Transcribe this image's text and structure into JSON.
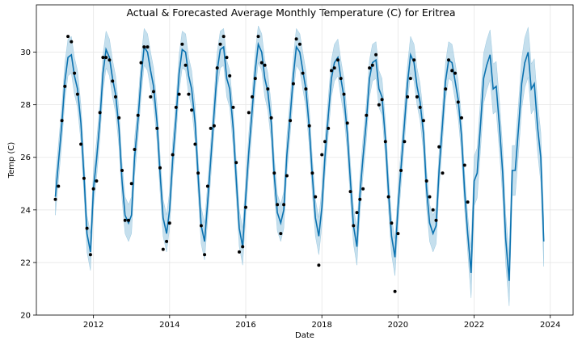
{
  "chart_data": {
    "type": "line",
    "title": "Actual & Forecasted Average Monthly Temperature (C) for Eritrea",
    "xlabel": "Date",
    "ylabel": "Temp (C)",
    "xlim": [
      2010.5,
      2024.6
    ],
    "ylim": [
      20,
      31.8
    ],
    "x_ticks": [
      2012,
      2014,
      2016,
      2018,
      2020,
      2022,
      2024
    ],
    "x_tick_labels": [
      "2012",
      "2014",
      "2016",
      "2018",
      "2020",
      "2022",
      "2024"
    ],
    "y_ticks": [
      20,
      22,
      24,
      26,
      28,
      30
    ],
    "y_tick_labels": [
      "20",
      "22",
      "24",
      "26",
      "28",
      "30"
    ],
    "grid": true,
    "colors": {
      "forecast": "#0b72b0",
      "band": "#9ecae1",
      "actual": "#000000"
    },
    "series": [
      {
        "role": "actual",
        "marker": "point",
        "points": [
          [
            2011.0,
            24.4
          ],
          [
            2011.08,
            24.9
          ],
          [
            2011.17,
            27.4
          ],
          [
            2011.25,
            28.7
          ],
          [
            2011.33,
            30.6
          ],
          [
            2011.42,
            30.4
          ],
          [
            2011.5,
            29.2
          ],
          [
            2011.58,
            28.4
          ],
          [
            2011.67,
            26.5
          ],
          [
            2011.75,
            25.2
          ],
          [
            2011.83,
            23.3
          ],
          [
            2011.92,
            22.3
          ],
          [
            2012.0,
            24.8
          ],
          [
            2012.08,
            25.1
          ],
          [
            2012.17,
            27.7
          ],
          [
            2012.25,
            29.8
          ],
          [
            2012.33,
            29.8
          ],
          [
            2012.42,
            29.7
          ],
          [
            2012.5,
            28.9
          ],
          [
            2012.58,
            28.3
          ],
          [
            2012.67,
            27.5
          ],
          [
            2012.75,
            25.5
          ],
          [
            2012.83,
            23.6
          ],
          [
            2012.92,
            23.6
          ],
          [
            2013.0,
            25.0
          ],
          [
            2013.08,
            26.3
          ],
          [
            2013.17,
            27.6
          ],
          [
            2013.25,
            29.6
          ],
          [
            2013.33,
            30.2
          ],
          [
            2013.42,
            30.2
          ],
          [
            2013.5,
            28.3
          ],
          [
            2013.58,
            28.5
          ],
          [
            2013.67,
            27.1
          ],
          [
            2013.75,
            25.6
          ],
          [
            2013.83,
            22.5
          ],
          [
            2013.92,
            22.8
          ],
          [
            2014.0,
            23.5
          ],
          [
            2014.08,
            26.1
          ],
          [
            2014.17,
            27.9
          ],
          [
            2014.25,
            28.4
          ],
          [
            2014.33,
            30.3
          ],
          [
            2014.42,
            29.5
          ],
          [
            2014.5,
            28.4
          ],
          [
            2014.58,
            27.8
          ],
          [
            2014.67,
            26.5
          ],
          [
            2014.75,
            25.4
          ],
          [
            2014.83,
            23.4
          ],
          [
            2014.92,
            22.3
          ],
          [
            2015.0,
            24.9
          ],
          [
            2015.08,
            27.1
          ],
          [
            2015.17,
            27.2
          ],
          [
            2015.25,
            29.4
          ],
          [
            2015.33,
            30.3
          ],
          [
            2015.42,
            30.6
          ],
          [
            2015.5,
            29.8
          ],
          [
            2015.58,
            29.1
          ],
          [
            2015.67,
            27.9
          ],
          [
            2015.75,
            25.8
          ],
          [
            2015.83,
            22.4
          ],
          [
            2015.92,
            22.6
          ],
          [
            2016.0,
            24.1
          ],
          [
            2016.08,
            27.7
          ],
          [
            2016.17,
            28.3
          ],
          [
            2016.25,
            29.0
          ],
          [
            2016.33,
            30.6
          ],
          [
            2016.42,
            29.6
          ],
          [
            2016.5,
            29.5
          ],
          [
            2016.58,
            28.6
          ],
          [
            2016.67,
            27.5
          ],
          [
            2016.75,
            25.4
          ],
          [
            2016.83,
            24.2
          ],
          [
            2016.92,
            23.1
          ],
          [
            2017.0,
            24.2
          ],
          [
            2017.08,
            25.3
          ],
          [
            2017.17,
            27.4
          ],
          [
            2017.25,
            28.8
          ],
          [
            2017.33,
            30.5
          ],
          [
            2017.42,
            30.3
          ],
          [
            2017.5,
            29.2
          ],
          [
            2017.58,
            28.6
          ],
          [
            2017.67,
            27.2
          ],
          [
            2017.75,
            25.4
          ],
          [
            2017.83,
            24.5
          ],
          [
            2017.92,
            21.9
          ],
          [
            2018.0,
            26.1
          ],
          [
            2018.08,
            26.6
          ],
          [
            2018.17,
            27.1
          ],
          [
            2018.25,
            29.3
          ],
          [
            2018.33,
            29.4
          ],
          [
            2018.42,
            29.7
          ],
          [
            2018.5,
            29.0
          ],
          [
            2018.58,
            28.4
          ],
          [
            2018.67,
            27.3
          ],
          [
            2018.75,
            24.7
          ],
          [
            2018.83,
            23.4
          ],
          [
            2018.92,
            23.9
          ],
          [
            2019.0,
            24.4
          ],
          [
            2019.08,
            24.8
          ],
          [
            2019.17,
            27.6
          ],
          [
            2019.25,
            29.4
          ],
          [
            2019.33,
            29.5
          ],
          [
            2019.42,
            29.9
          ],
          [
            2019.5,
            28.0
          ],
          [
            2019.58,
            28.2
          ],
          [
            2019.67,
            26.6
          ],
          [
            2019.75,
            24.5
          ],
          [
            2019.83,
            23.5
          ],
          [
            2019.92,
            20.9
          ],
          [
            2020.0,
            23.1
          ],
          [
            2020.08,
            25.5
          ],
          [
            2020.17,
            26.6
          ],
          [
            2020.25,
            28.3
          ],
          [
            2020.33,
            29.0
          ],
          [
            2020.42,
            29.7
          ],
          [
            2020.5,
            28.3
          ],
          [
            2020.58,
            27.9
          ],
          [
            2020.67,
            27.4
          ],
          [
            2020.75,
            25.1
          ],
          [
            2020.83,
            24.5
          ],
          [
            2020.92,
            24.0
          ],
          [
            2021.0,
            23.6
          ],
          [
            2021.08,
            26.4
          ],
          [
            2021.17,
            25.4
          ],
          [
            2021.25,
            28.6
          ],
          [
            2021.33,
            29.7
          ],
          [
            2021.42,
            29.3
          ],
          [
            2021.5,
            29.2
          ],
          [
            2021.58,
            28.1
          ],
          [
            2021.67,
            27.5
          ],
          [
            2021.75,
            25.7
          ],
          [
            2021.83,
            24.3
          ]
        ]
      },
      {
        "role": "forecast",
        "marker": "line",
        "points": [
          [
            2011.0,
            24.5
          ],
          [
            2011.08,
            25.8
          ],
          [
            2011.17,
            27.3
          ],
          [
            2011.25,
            28.9
          ],
          [
            2011.33,
            29.8
          ],
          [
            2011.42,
            29.9
          ],
          [
            2011.5,
            29.1
          ],
          [
            2011.58,
            28.6
          ],
          [
            2011.67,
            27.3
          ],
          [
            2011.75,
            25.3
          ],
          [
            2011.83,
            23.1
          ],
          [
            2011.92,
            22.4
          ],
          [
            2012.0,
            24.8
          ],
          [
            2012.08,
            25.9
          ],
          [
            2012.17,
            27.4
          ],
          [
            2012.25,
            29.2
          ],
          [
            2012.33,
            30.1
          ],
          [
            2012.42,
            29.8
          ],
          [
            2012.5,
            29.0
          ],
          [
            2012.58,
            28.4
          ],
          [
            2012.67,
            27.1
          ],
          [
            2012.75,
            25.1
          ],
          [
            2012.83,
            23.8
          ],
          [
            2012.92,
            23.5
          ],
          [
            2013.0,
            23.8
          ],
          [
            2013.08,
            26.0
          ],
          [
            2013.17,
            27.4
          ],
          [
            2013.25,
            29.0
          ],
          [
            2013.33,
            30.2
          ],
          [
            2013.42,
            30.0
          ],
          [
            2013.5,
            29.3
          ],
          [
            2013.58,
            28.7
          ],
          [
            2013.67,
            27.3
          ],
          [
            2013.75,
            25.4
          ],
          [
            2013.83,
            23.7
          ],
          [
            2013.92,
            23.1
          ],
          [
            2014.0,
            24.0
          ],
          [
            2014.08,
            25.9
          ],
          [
            2014.17,
            27.5
          ],
          [
            2014.25,
            29.2
          ],
          [
            2014.33,
            30.1
          ],
          [
            2014.42,
            30.0
          ],
          [
            2014.5,
            29.1
          ],
          [
            2014.58,
            28.6
          ],
          [
            2014.67,
            27.3
          ],
          [
            2014.75,
            25.3
          ],
          [
            2014.83,
            23.4
          ],
          [
            2014.92,
            22.8
          ],
          [
            2015.0,
            24.3
          ],
          [
            2015.08,
            25.9
          ],
          [
            2015.17,
            27.7
          ],
          [
            2015.25,
            29.3
          ],
          [
            2015.33,
            30.1
          ],
          [
            2015.42,
            30.2
          ],
          [
            2015.5,
            29.0
          ],
          [
            2015.58,
            28.6
          ],
          [
            2015.67,
            27.1
          ],
          [
            2015.75,
            25.2
          ],
          [
            2015.83,
            23.3
          ],
          [
            2015.92,
            22.6
          ],
          [
            2016.0,
            24.5
          ],
          [
            2016.08,
            26.2
          ],
          [
            2016.17,
            27.8
          ],
          [
            2016.25,
            29.3
          ],
          [
            2016.33,
            30.3
          ],
          [
            2016.42,
            30.0
          ],
          [
            2016.5,
            29.0
          ],
          [
            2016.58,
            28.5
          ],
          [
            2016.67,
            27.3
          ],
          [
            2016.75,
            25.3
          ],
          [
            2016.83,
            23.9
          ],
          [
            2016.92,
            23.5
          ],
          [
            2017.0,
            24.0
          ],
          [
            2017.08,
            26.1
          ],
          [
            2017.17,
            27.6
          ],
          [
            2017.25,
            29.1
          ],
          [
            2017.33,
            30.2
          ],
          [
            2017.42,
            30.0
          ],
          [
            2017.5,
            29.3
          ],
          [
            2017.58,
            28.6
          ],
          [
            2017.67,
            27.1
          ],
          [
            2017.75,
            25.3
          ],
          [
            2017.83,
            23.7
          ],
          [
            2017.92,
            23.0
          ],
          [
            2018.0,
            24.1
          ],
          [
            2018.08,
            26.0
          ],
          [
            2018.17,
            27.6
          ],
          [
            2018.25,
            29.0
          ],
          [
            2018.33,
            29.6
          ],
          [
            2018.42,
            29.8
          ],
          [
            2018.5,
            29.0
          ],
          [
            2018.58,
            28.3
          ],
          [
            2018.67,
            26.9
          ],
          [
            2018.75,
            25.1
          ],
          [
            2018.83,
            23.4
          ],
          [
            2018.92,
            22.6
          ],
          [
            2019.0,
            24.6
          ],
          [
            2019.08,
            26.0
          ],
          [
            2019.17,
            27.4
          ],
          [
            2019.25,
            29.0
          ],
          [
            2019.33,
            29.6
          ],
          [
            2019.42,
            29.7
          ],
          [
            2019.5,
            28.6
          ],
          [
            2019.58,
            28.3
          ],
          [
            2019.67,
            26.7
          ],
          [
            2019.75,
            24.7
          ],
          [
            2019.83,
            23.0
          ],
          [
            2019.92,
            22.2
          ],
          [
            2020.0,
            24.1
          ],
          [
            2020.08,
            25.6
          ],
          [
            2020.17,
            27.3
          ],
          [
            2020.25,
            28.8
          ],
          [
            2020.33,
            29.9
          ],
          [
            2020.42,
            29.6
          ],
          [
            2020.5,
            28.7
          ],
          [
            2020.58,
            28.1
          ],
          [
            2020.67,
            26.9
          ],
          [
            2020.75,
            24.8
          ],
          [
            2020.83,
            23.5
          ],
          [
            2020.92,
            23.1
          ],
          [
            2021.0,
            23.4
          ],
          [
            2021.08,
            25.5
          ],
          [
            2021.17,
            27.3
          ],
          [
            2021.25,
            28.9
          ],
          [
            2021.33,
            29.7
          ],
          [
            2021.42,
            29.6
          ],
          [
            2021.5,
            28.9
          ],
          [
            2021.58,
            28.2
          ],
          [
            2021.67,
            26.8
          ],
          [
            2021.75,
            24.7
          ],
          [
            2021.83,
            23.1
          ],
          [
            2021.92,
            21.6
          ],
          [
            2022.0,
            25.1
          ],
          [
            2022.08,
            25.4
          ],
          [
            2022.17,
            27.3
          ],
          [
            2022.25,
            29.0
          ],
          [
            2022.33,
            29.5
          ],
          [
            2022.42,
            29.9
          ],
          [
            2022.5,
            28.6
          ],
          [
            2022.58,
            28.7
          ],
          [
            2022.67,
            27.1
          ],
          [
            2022.75,
            25.4
          ],
          [
            2022.83,
            22.9
          ],
          [
            2022.92,
            21.3
          ],
          [
            2023.0,
            25.5
          ],
          [
            2023.08,
            25.5
          ],
          [
            2023.17,
            27.2
          ],
          [
            2023.25,
            28.8
          ],
          [
            2023.33,
            29.6
          ],
          [
            2023.42,
            30.0
          ],
          [
            2023.5,
            28.6
          ],
          [
            2023.58,
            28.8
          ],
          [
            2023.67,
            27.1
          ],
          [
            2023.75,
            26.0
          ],
          [
            2023.83,
            22.8
          ]
        ]
      }
    ]
  }
}
